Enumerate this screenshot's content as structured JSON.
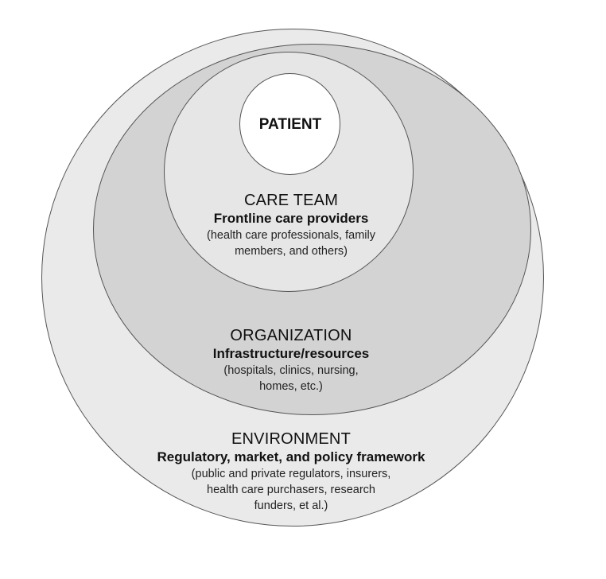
{
  "diagram": {
    "colors": {
      "environment_fill": "#eaeaea",
      "organization_fill": "#d3d3d3",
      "careteam_fill": "#e6e6e6",
      "patient_fill": "#ffffff",
      "outline": "#555555"
    },
    "patient": {
      "title": "PATIENT"
    },
    "care_team": {
      "title": "CARE TEAM",
      "subtitle": "Frontline care providers",
      "detail_lines": [
        "(health care professionals, family",
        "members, and others)"
      ]
    },
    "organization": {
      "title": "ORGANIZATION",
      "subtitle": "Infrastructure/resources",
      "detail_lines": [
        "(hospitals, clinics, nursing,",
        "homes, etc.)"
      ]
    },
    "environment": {
      "title": "ENVIRONMENT",
      "subtitle": "Regulatory, market, and policy framework",
      "detail_lines": [
        "(public and private regulators, insurers,",
        "health care purchasers, research",
        "funders, et al.)"
      ]
    }
  }
}
